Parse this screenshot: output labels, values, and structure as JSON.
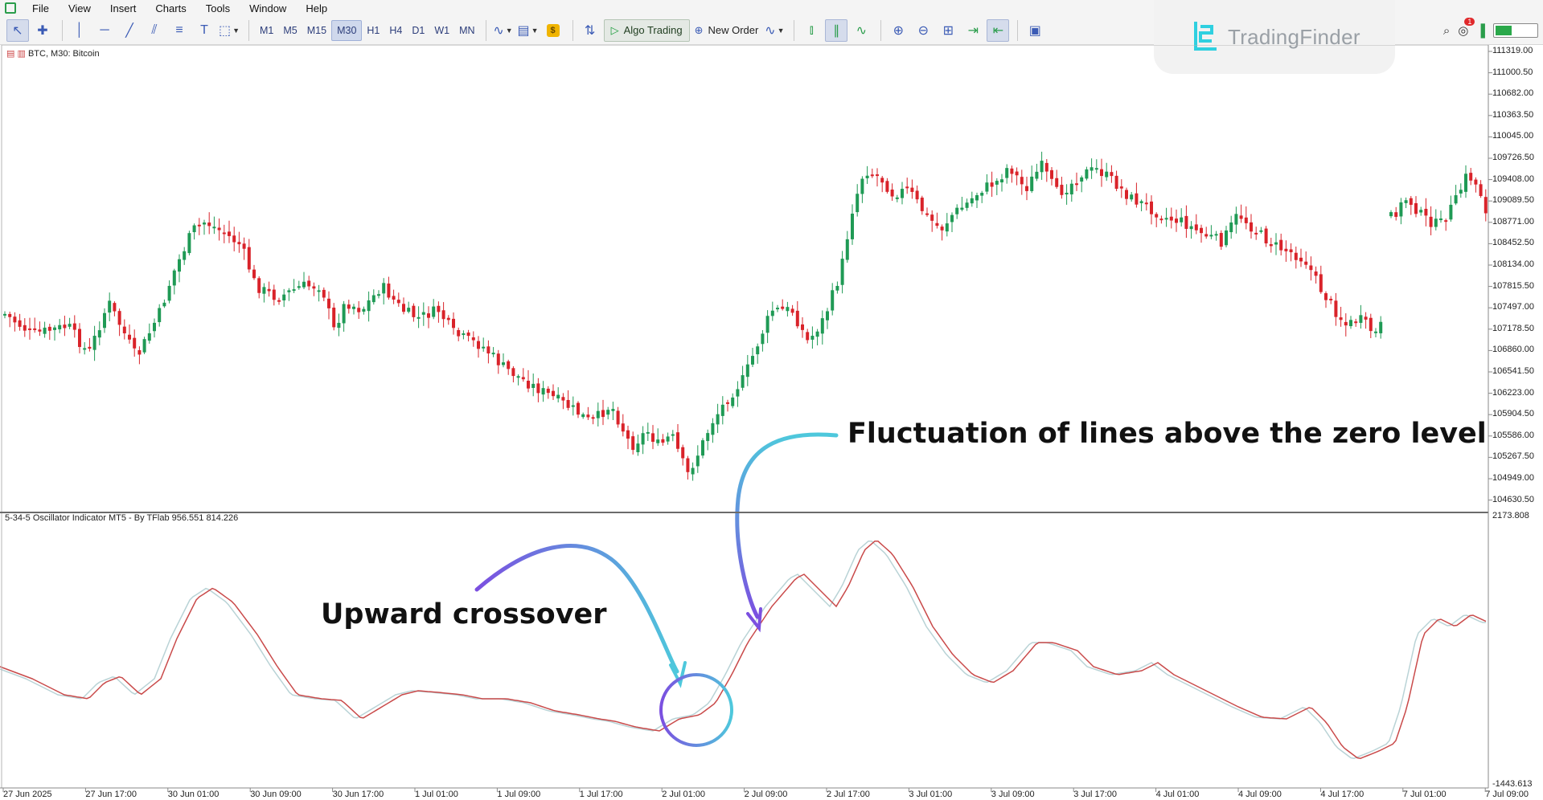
{
  "menu": [
    "File",
    "View",
    "Insert",
    "Charts",
    "Tools",
    "Window",
    "Help"
  ],
  "toolbar": {
    "timeframes": [
      "M1",
      "M5",
      "M15",
      "M30",
      "H1",
      "H4",
      "D1",
      "W1",
      "MN"
    ],
    "active_timeframe": "M30",
    "algo_trading_label": "Algo Trading",
    "new_order_label": "New Order",
    "gold_badge": "$"
  },
  "notifications_count": "1",
  "logo": {
    "text": "TradingFinder"
  },
  "chart": {
    "symbol_label": "BTC, M30:  Bitcoin",
    "price_ticks": [
      "111319.00",
      "111000.50",
      "110682.00",
      "110363.50",
      "110045.00",
      "109726.50",
      "109408.00",
      "109089.50",
      "108771.00",
      "108452.50",
      "108134.00",
      "107815.50",
      "107497.00",
      "107178.50",
      "106860.00",
      "106541.50",
      "106223.00",
      "105904.50",
      "105586.00",
      "105267.50",
      "104949.00",
      "104630.50"
    ]
  },
  "oscillator": {
    "label": "5-34-5 Oscillator Indicator MT5 - By TFlab 956.551 814.226",
    "top_value": "2173.808",
    "bottom_value": "-1443.613"
  },
  "time_ticks": [
    "27 Jun 2025",
    "27 Jun 17:00",
    "30 Jun 01:00",
    "30 Jun 09:00",
    "30 Jun 17:00",
    "1 Jul 01:00",
    "1 Jul 09:00",
    "1 Jul 17:00",
    "2 Jul 01:00",
    "2 Jul 09:00",
    "2 Jul 17:00",
    "3 Jul 01:00",
    "3 Jul 09:00",
    "3 Jul 17:00",
    "4 Jul 01:00",
    "4 Jul 09:00",
    "4 Jul 17:00",
    "7 Jul 01:00",
    "7 Jul 09:00"
  ],
  "annotations": {
    "fluctuation": "Fluctuation of lines above the zero level",
    "crossover": "Upward crossover"
  },
  "colors": {
    "bull": "#1f9a55",
    "bear": "#d9232a",
    "osc_main": "#c94a4a",
    "osc_signal": "#b9d3d6",
    "arrow_start": "#7b4fe0",
    "arrow_end": "#4ec8dc"
  }
}
